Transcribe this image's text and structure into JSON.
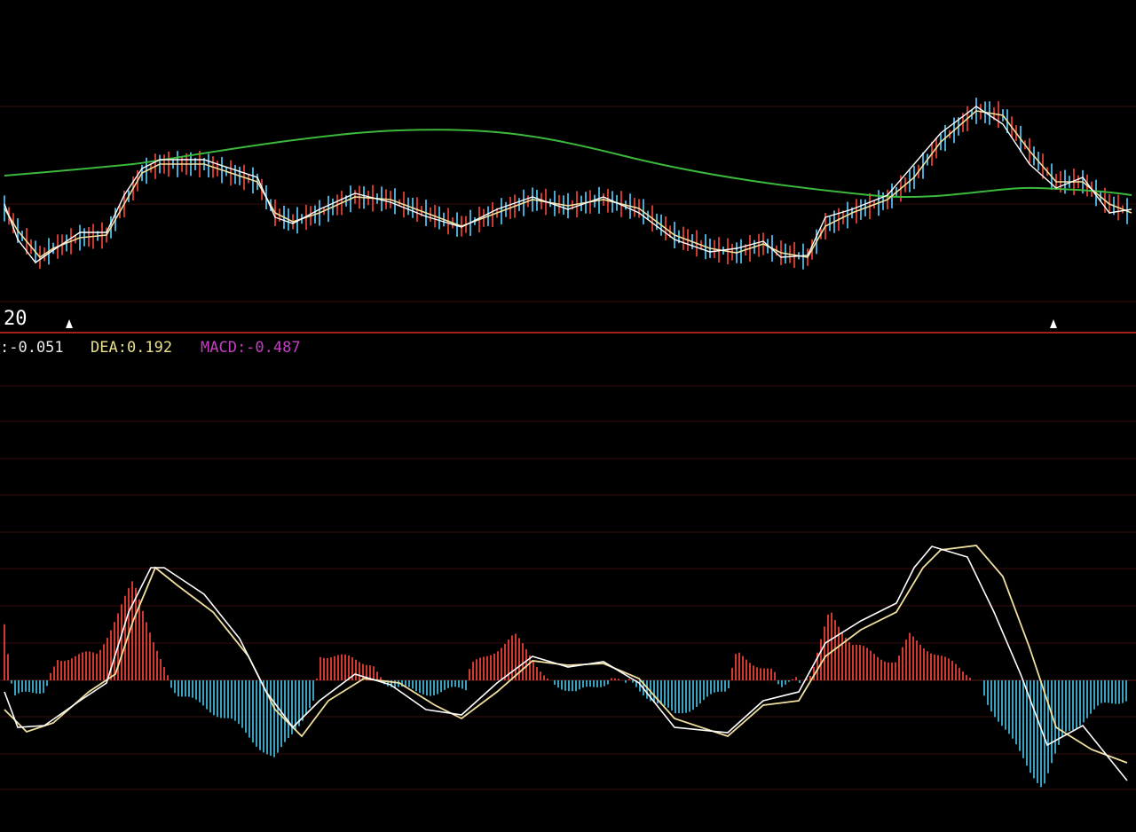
{
  "panel": {
    "period_label": "20"
  },
  "indicator": {
    "dif": ":-0.051",
    "dea": "DEA:0.192",
    "macd": "MACD:-0.487"
  }
}
